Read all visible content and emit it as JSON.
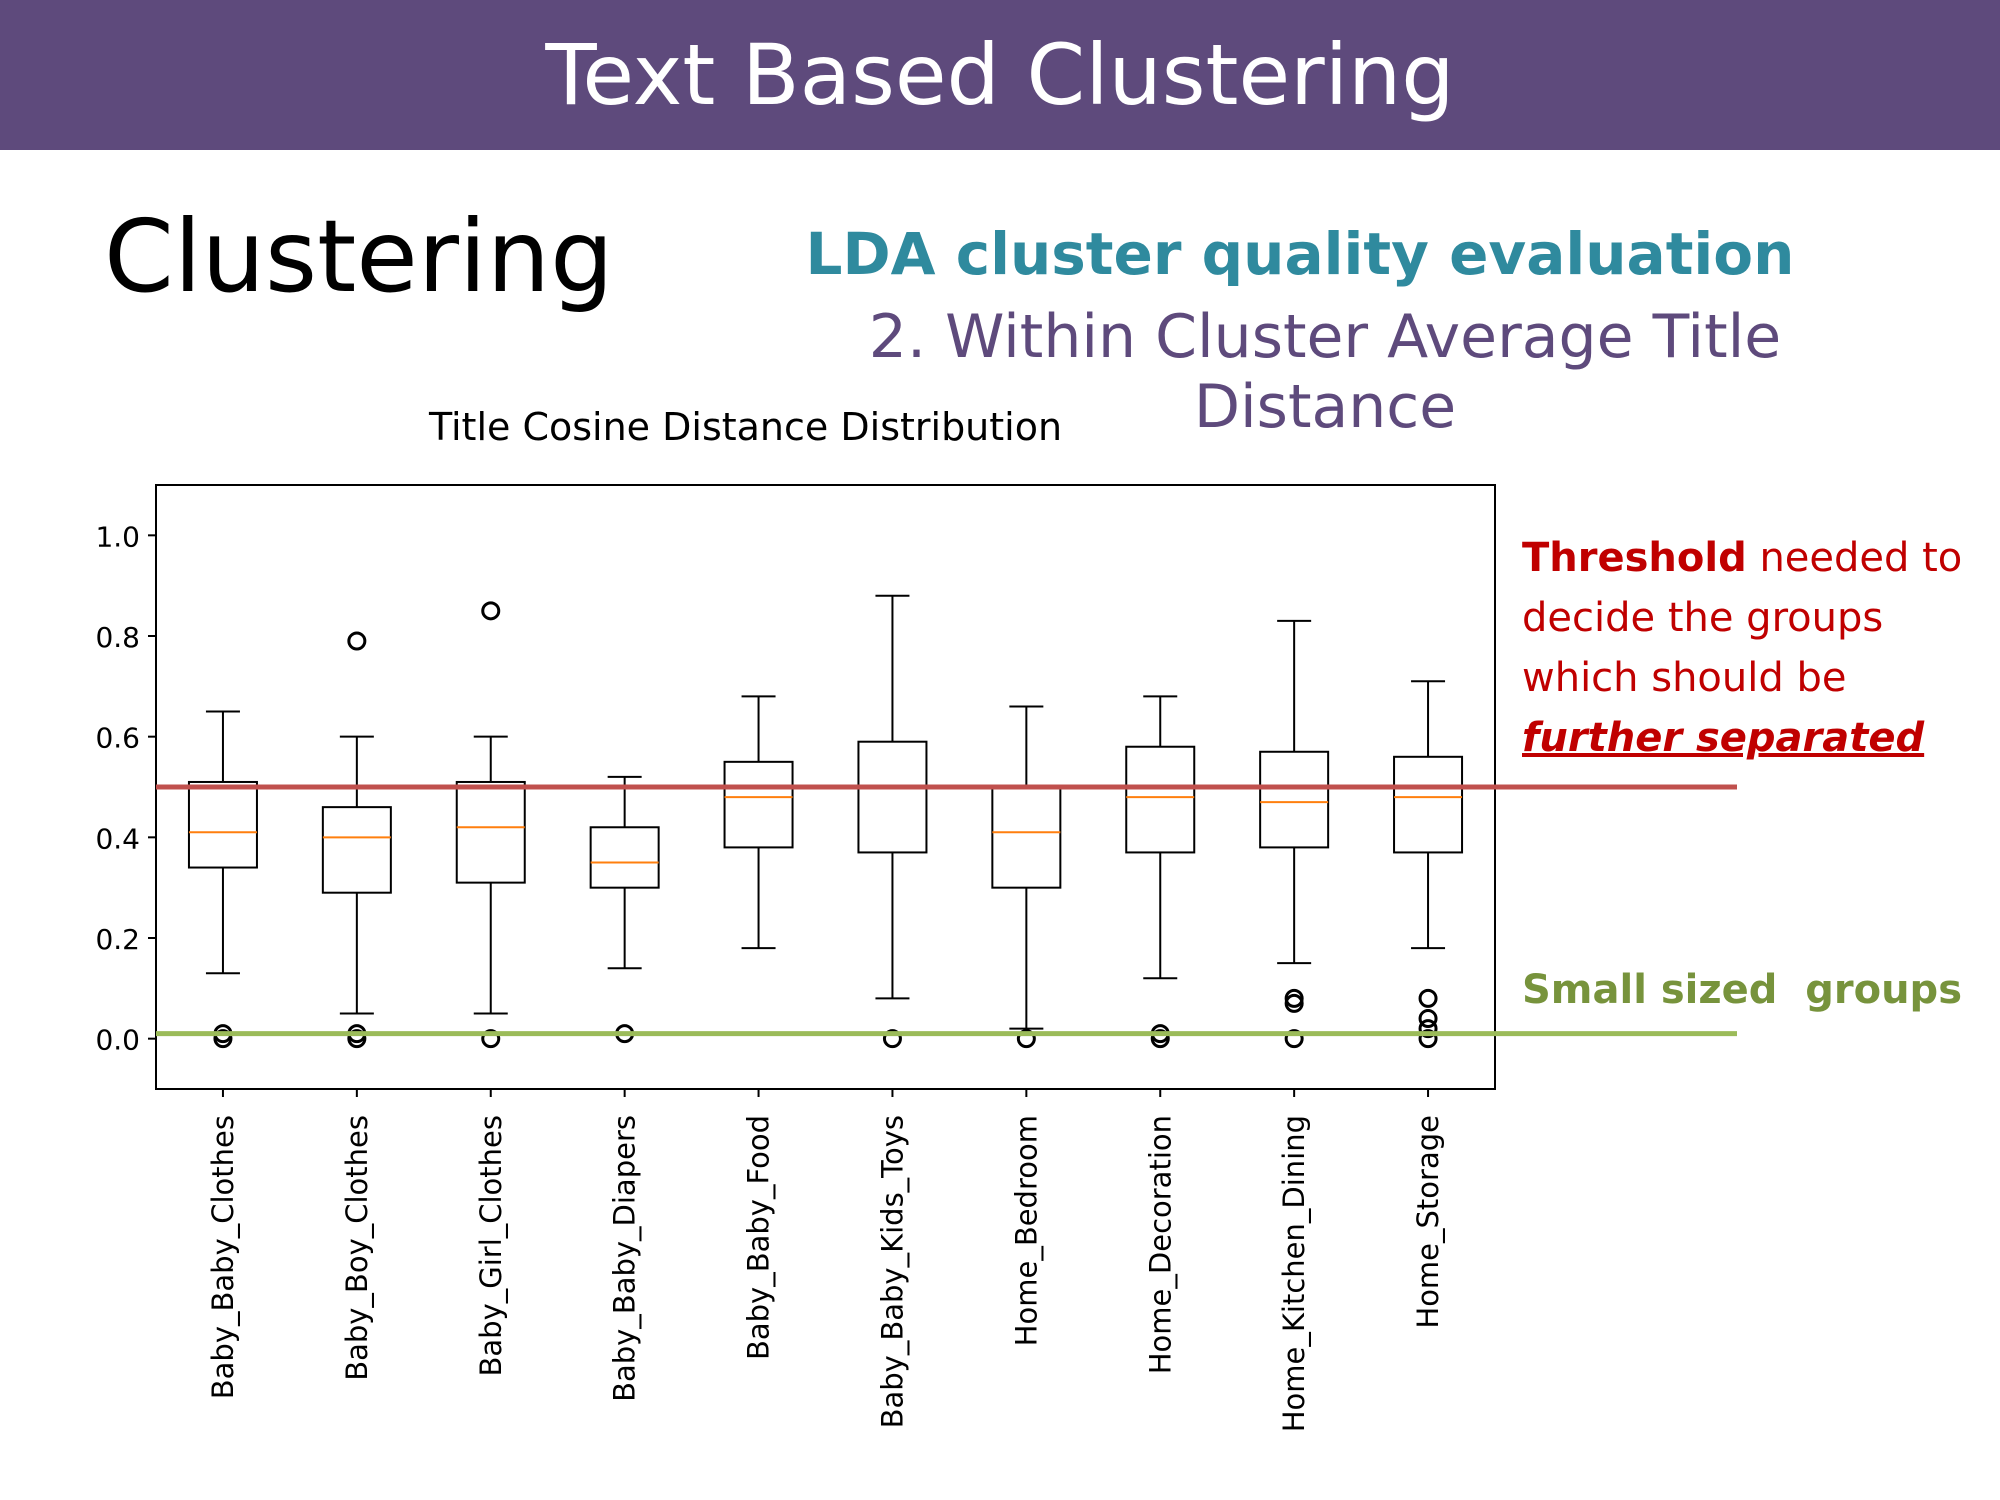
{
  "header": {
    "title": "Text Based Clustering"
  },
  "section": {
    "title": "Clustering"
  },
  "subtitle": {
    "line1": "LDA cluster quality evaluation",
    "line2": "2. Within Cluster Average Title Distance"
  },
  "annotations": {
    "threshold_bold": "Threshold",
    "threshold_rest": " needed to decide the groups which should be ",
    "threshold_emphasis": "further separated",
    "small_groups": "Small sized  groups"
  },
  "colors": {
    "banner": "#5e4a7c",
    "subtitle_teal": "#2f8a9e",
    "threshold_line": "#c0504d",
    "small_groups_line": "#9bbb59",
    "median_line": "#ff7f0e"
  },
  "chart_data": {
    "type": "box",
    "title": "Title Cosine Distance Distribution",
    "xlabel": "",
    "ylabel": "",
    "ylim": [
      -0.1,
      1.1
    ],
    "yticks": [
      0.0,
      0.2,
      0.4,
      0.6,
      0.8,
      1.0
    ],
    "ytick_labels": [
      "0.0",
      "0.2",
      "0.4",
      "0.6",
      "0.8",
      "1.0"
    ],
    "categories": [
      "Baby_Baby_Clothes",
      "Baby_Boy_Clothes",
      "Baby_Girl_Clothes",
      "Baby_Baby_Diapers",
      "Baby_Baby_Food",
      "Baby_Baby_Kids_Toys",
      "Home_Bedroom",
      "Home_Decoration",
      "Home_Kitchen_Dining",
      "Home_Storage"
    ],
    "boxes": [
      {
        "whisker_low": 0.13,
        "q1": 0.34,
        "median": 0.41,
        "q3": 0.51,
        "whisker_high": 0.65,
        "outliers": [
          0.0,
          0.01
        ]
      },
      {
        "whisker_low": 0.05,
        "q1": 0.29,
        "median": 0.4,
        "q3": 0.46,
        "whisker_high": 0.6,
        "outliers": [
          0.0,
          0.01,
          0.79
        ]
      },
      {
        "whisker_low": 0.05,
        "q1": 0.31,
        "median": 0.42,
        "q3": 0.51,
        "whisker_high": 0.6,
        "outliers": [
          0.0,
          0.85
        ]
      },
      {
        "whisker_low": 0.14,
        "q1": 0.3,
        "median": 0.35,
        "q3": 0.42,
        "whisker_high": 0.52,
        "outliers": [
          0.01
        ]
      },
      {
        "whisker_low": 0.18,
        "q1": 0.38,
        "median": 0.48,
        "q3": 0.55,
        "whisker_high": 0.68,
        "outliers": []
      },
      {
        "whisker_low": 0.08,
        "q1": 0.37,
        "median": 0.5,
        "q3": 0.59,
        "whisker_high": 0.88,
        "outliers": [
          0.0
        ]
      },
      {
        "whisker_low": 0.02,
        "q1": 0.3,
        "median": 0.41,
        "q3": 0.5,
        "whisker_high": 0.66,
        "outliers": [
          0.0
        ]
      },
      {
        "whisker_low": 0.12,
        "q1": 0.37,
        "median": 0.48,
        "q3": 0.58,
        "whisker_high": 0.68,
        "outliers": [
          0.0,
          0.01
        ]
      },
      {
        "whisker_low": 0.15,
        "q1": 0.38,
        "median": 0.47,
        "q3": 0.57,
        "whisker_high": 0.83,
        "outliers": [
          0.0,
          0.07,
          0.08
        ]
      },
      {
        "whisker_low": 0.18,
        "q1": 0.37,
        "median": 0.48,
        "q3": 0.56,
        "whisker_high": 0.71,
        "outliers": [
          0.0,
          0.02,
          0.04,
          0.08
        ]
      }
    ],
    "reference_lines": [
      {
        "label": "Threshold",
        "y": 0.5
      },
      {
        "label": "Small sized groups",
        "y": 0.01
      }
    ],
    "grid": false,
    "legend": "none"
  }
}
